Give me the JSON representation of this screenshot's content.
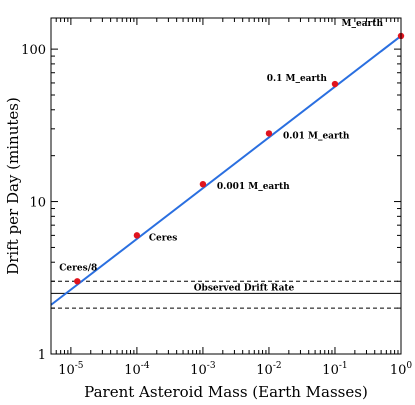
{
  "chart_data": {
    "type": "scatter",
    "xlabel": "Parent Asteroid Mass (Earth Masses)",
    "ylabel": "Drift per Day (minutes)",
    "x_scale": "log",
    "y_scale": "log",
    "xlim": [
      5e-06,
      1
    ],
    "ylim": [
      1,
      160
    ],
    "x_ticks": [
      {
        "value": 1e-05,
        "base": "10",
        "exp": "-5"
      },
      {
        "value": 0.0001,
        "base": "10",
        "exp": "-4"
      },
      {
        "value": 0.001,
        "base": "10",
        "exp": "-3"
      },
      {
        "value": 0.01,
        "base": "10",
        "exp": "-2"
      },
      {
        "value": 0.1,
        "base": "10",
        "exp": "-1"
      },
      {
        "value": 1,
        "base": "10",
        "exp": "0"
      }
    ],
    "y_ticks": [
      {
        "value": 1,
        "label": "1"
      },
      {
        "value": 10,
        "label": "10"
      },
      {
        "value": 100,
        "label": "100"
      }
    ],
    "points": [
      {
        "label": "Ceres/8",
        "x": 1.25e-05,
        "y": 3.0
      },
      {
        "label": "Ceres",
        "x": 0.0001,
        "y": 6.0
      },
      {
        "label": "0.001 M_earth",
        "x": 0.001,
        "y": 13.0
      },
      {
        "label": "0.01 M_earth",
        "x": 0.01,
        "y": 28.0
      },
      {
        "label": "0.1 M_earth",
        "x": 0.1,
        "y": 59.0
      },
      {
        "label": "M_earth",
        "x": 1,
        "y": 122.0
      }
    ],
    "fit_line": {
      "x": [
        5e-06,
        1
      ],
      "y": [
        2.1,
        122.0
      ]
    },
    "reference_lines": [
      {
        "label": "Observed Drift Rate",
        "y": 2.5,
        "style": "solid"
      },
      {
        "label": "",
        "y": 3.0,
        "style": "dashed"
      },
      {
        "label": "",
        "y": 2.0,
        "style": "dashed"
      }
    ],
    "colors": {
      "points": "#e0141e",
      "fit_line": "#2a6fe0",
      "axes": "#000000"
    }
  }
}
